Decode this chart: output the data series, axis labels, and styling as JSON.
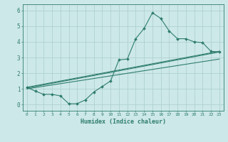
{
  "xlabel": "Humidex (Indice chaleur)",
  "background_color": "#cde8e8",
  "line_color": "#2e7d6e",
  "grid_color": "#a8cecc",
  "xlim": [
    -0.5,
    23.5
  ],
  "ylim": [
    -0.4,
    6.4
  ],
  "xticks": [
    0,
    1,
    2,
    3,
    4,
    5,
    6,
    7,
    8,
    9,
    10,
    11,
    12,
    13,
    14,
    15,
    16,
    17,
    18,
    19,
    20,
    21,
    22,
    23
  ],
  "yticks": [
    0,
    1,
    2,
    3,
    4,
    5,
    6
  ],
  "main_x": [
    0,
    1,
    2,
    3,
    4,
    5,
    6,
    7,
    8,
    9,
    10,
    11,
    12,
    13,
    14,
    15,
    16,
    17,
    18,
    19,
    20,
    21,
    22,
    23
  ],
  "main_y": [
    1.1,
    0.85,
    0.65,
    0.65,
    0.55,
    0.05,
    0.05,
    0.3,
    0.8,
    1.15,
    1.5,
    2.85,
    2.9,
    4.2,
    4.85,
    5.85,
    5.5,
    4.7,
    4.2,
    4.2,
    4.0,
    3.95,
    3.4,
    3.35
  ],
  "line1_x": [
    0,
    23
  ],
  "line1_y": [
    1.1,
    3.4
  ],
  "line2_x": [
    0,
    23
  ],
  "line2_y": [
    1.05,
    3.35
  ],
  "line3_x": [
    0,
    23
  ],
  "line3_y": [
    1.0,
    2.9
  ]
}
